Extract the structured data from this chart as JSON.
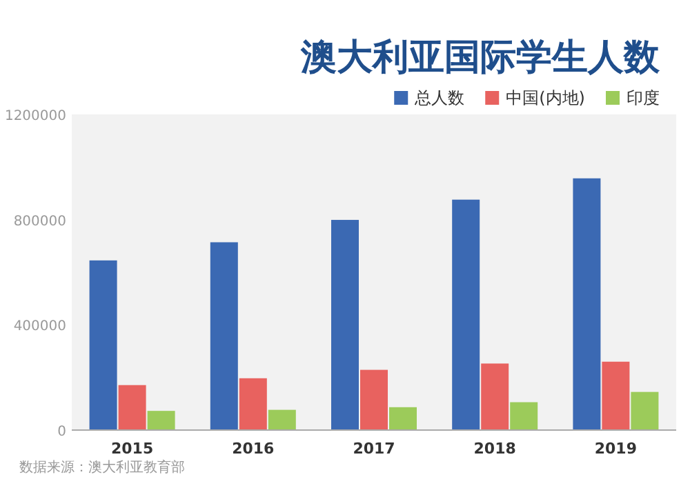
{
  "chart_data": {
    "type": "bar",
    "title": "澳大利亚国际学生人数",
    "categories": [
      "2015",
      "2016",
      "2017",
      "2018",
      "2019"
    ],
    "series": [
      {
        "name": "总人数",
        "color": "#3b69b3",
        "values": [
          645000,
          714000,
          799000,
          876000,
          957000
        ]
      },
      {
        "name": "中国(内地)",
        "color": "#e8625f",
        "values": [
          171000,
          197000,
          229000,
          253000,
          260000
        ]
      },
      {
        "name": "印度",
        "color": "#9ccb5a",
        "values": [
          73000,
          77000,
          87000,
          106000,
          145000
        ]
      }
    ],
    "ylim": [
      0,
      1200000
    ],
    "yticks": [
      0,
      400000,
      800000,
      1200000
    ],
    "legend": "top right",
    "annotations": [
      "数据来源：澳大利亚教育部"
    ]
  }
}
